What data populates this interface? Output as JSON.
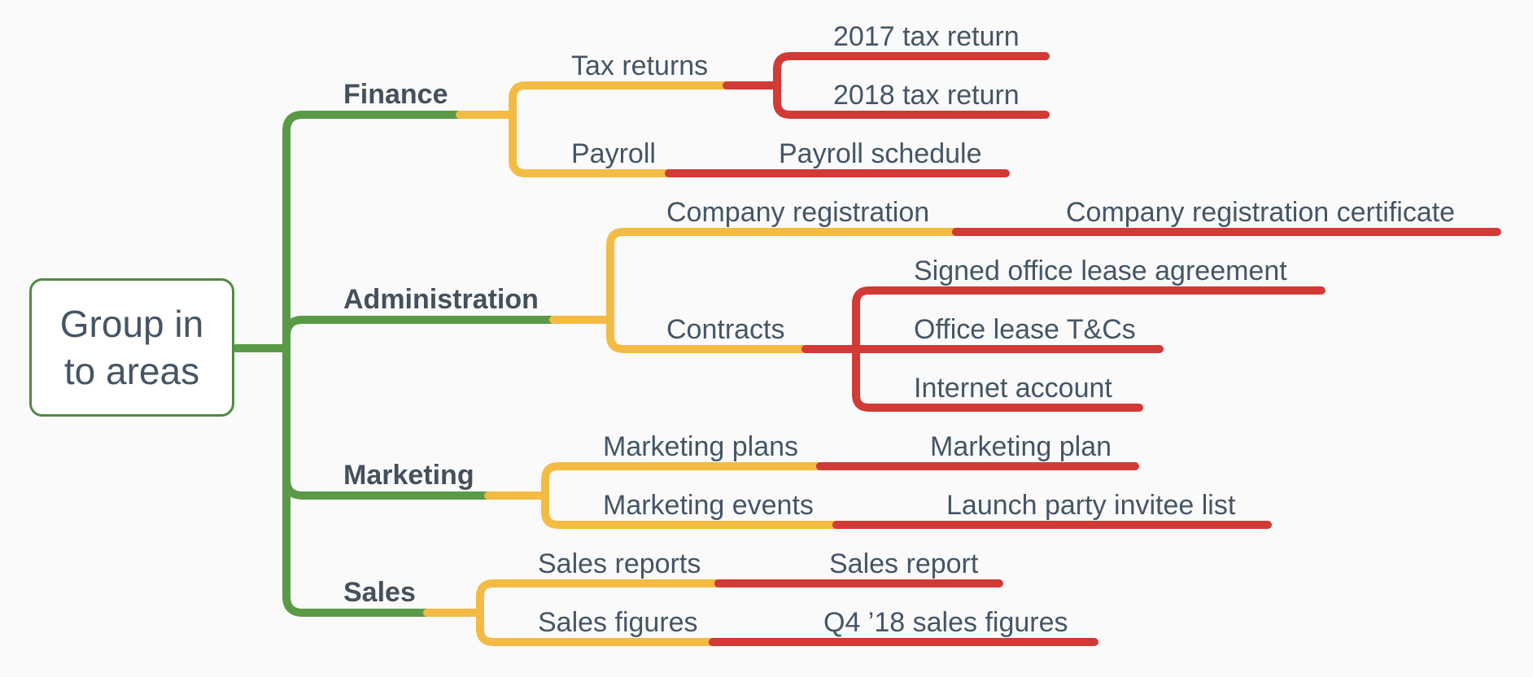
{
  "root": {
    "label": "Group in to areas"
  },
  "colors": {
    "branch": "#5a9a46",
    "topic": "#f4bb44",
    "leaf": "#d23a36",
    "text": "#445566"
  },
  "branches": [
    {
      "label": "Finance",
      "topics": [
        {
          "label": "Tax returns",
          "leaves": [
            "2017 tax return",
            "2018 tax return"
          ]
        },
        {
          "label": "Payroll",
          "leaves": [
            "Payroll schedule"
          ]
        }
      ]
    },
    {
      "label": "Administration",
      "topics": [
        {
          "label": "Company registration",
          "leaves": [
            "Company registration certificate"
          ]
        },
        {
          "label": "Contracts",
          "leaves": [
            "Signed office lease agreement",
            "Office lease T&Cs",
            "Internet account"
          ]
        }
      ]
    },
    {
      "label": "Marketing",
      "topics": [
        {
          "label": "Marketing plans",
          "leaves": [
            "Marketing plan"
          ]
        },
        {
          "label": "Marketing events",
          "leaves": [
            "Launch party invitee list"
          ]
        }
      ]
    },
    {
      "label": "Sales",
      "topics": [
        {
          "label": "Sales reports",
          "leaves": [
            "Sales report"
          ]
        },
        {
          "label": "Sales figures",
          "leaves": [
            "Q4 ’18 sales figures"
          ]
        }
      ]
    }
  ]
}
